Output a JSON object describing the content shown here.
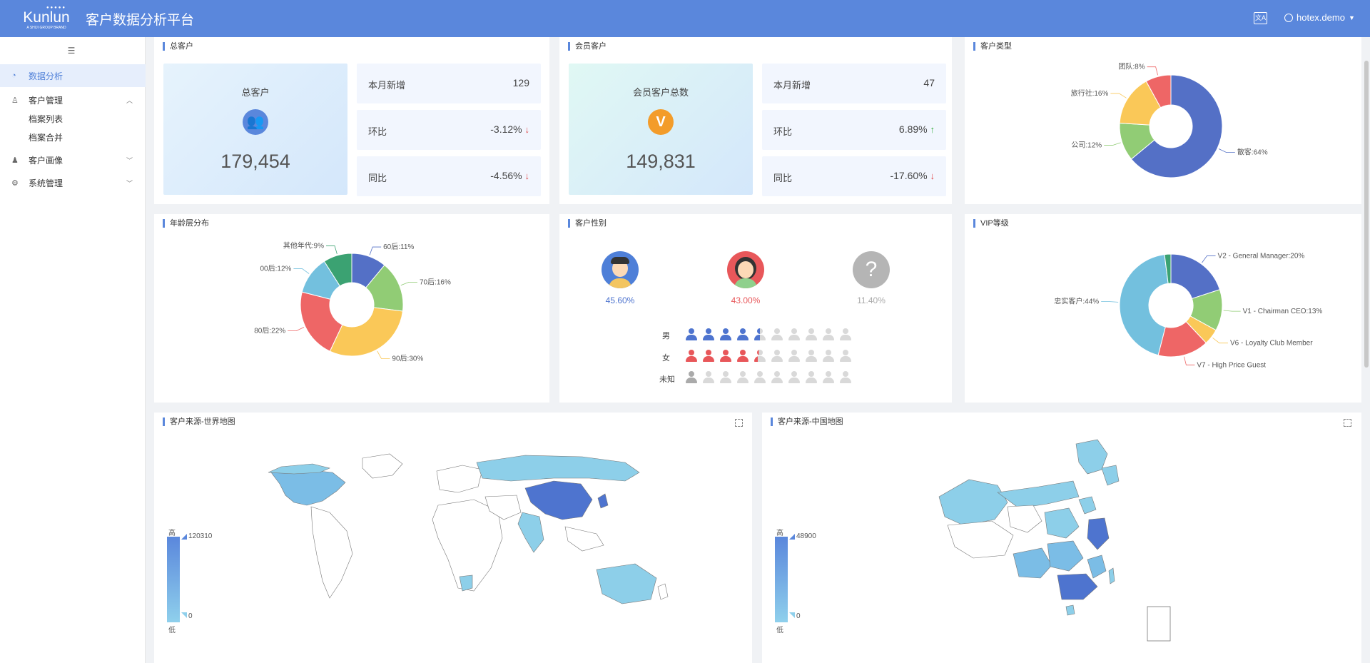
{
  "header": {
    "logo_name": "Kunlun",
    "logo_sub": "A SHIJI GROUP BRAND",
    "title": "客户数据分析平台",
    "lang_icon": "translate-icon",
    "user": "hotex.demo"
  },
  "sidebar": {
    "items": [
      {
        "label": "数据分析",
        "icon": "chart-icon"
      },
      {
        "label": "客户管理",
        "icon": "users-icon"
      },
      {
        "label": "档案列表"
      },
      {
        "label": "档案合并"
      },
      {
        "label": "客户画像",
        "icon": "person-icon"
      },
      {
        "label": "系统管理",
        "icon": "gear-icon"
      }
    ]
  },
  "total_customers": {
    "title": "总客户",
    "big_label": "总客户",
    "big_value": "179,454",
    "rows": [
      {
        "label": "本月新增",
        "value": "129",
        "trend": ""
      },
      {
        "label": "环比",
        "value": "-3.12%",
        "trend": "down"
      },
      {
        "label": "同比",
        "value": "-4.56%",
        "trend": "down"
      }
    ]
  },
  "member_customers": {
    "title": "会员客户",
    "big_label": "会员客户总数",
    "big_value": "149,831",
    "rows": [
      {
        "label": "本月新增",
        "value": "47",
        "trend": ""
      },
      {
        "label": "环比",
        "value": "6.89%",
        "trend": "up"
      },
      {
        "label": "同比",
        "value": "-17.60%",
        "trend": "down"
      }
    ]
  },
  "customer_type": {
    "title": "客户类型",
    "chart_data": {
      "type": "pie",
      "series": [
        {
          "name": "散客",
          "value": 64,
          "label": "散客:64%",
          "color": "#5470c6"
        },
        {
          "name": "公司",
          "value": 12,
          "label": "公司:12%",
          "color": "#91cc75"
        },
        {
          "name": "旅行社",
          "value": 16,
          "label": "旅行社:16%",
          "color": "#fac858"
        },
        {
          "name": "团队",
          "value": 8,
          "label": "团队:8%",
          "color": "#ee6666"
        }
      ]
    }
  },
  "age_distribution": {
    "title": "年龄层分布",
    "chart_data": {
      "type": "pie",
      "series": [
        {
          "name": "60后",
          "value": 11,
          "label": "60后:11%",
          "color": "#5470c6"
        },
        {
          "name": "70后",
          "value": 16,
          "label": "70后:16%",
          "color": "#91cc75"
        },
        {
          "name": "90后",
          "value": 30,
          "label": "90后:30%",
          "color": "#fac858"
        },
        {
          "name": "80后",
          "value": 22,
          "label": "80后:22%",
          "color": "#ee6666"
        },
        {
          "name": "00后",
          "value": 12,
          "label": "00后:12%",
          "color": "#73c0de"
        },
        {
          "name": "其他年代",
          "value": 9,
          "label": "其他年代:9%",
          "color": "#3ba272"
        }
      ]
    }
  },
  "gender": {
    "title": "客户性别",
    "male_pct": "45.60%",
    "female_pct": "43.00%",
    "unknown_pct": "11.40%",
    "male_label": "男",
    "female_label": "女",
    "unknown_label": "未知",
    "unknown_symbol": "?",
    "male_color": "#4e74cf",
    "female_color": "#e8575a",
    "unknown_color": "#aaaaaa",
    "male_fill": 4.5,
    "female_fill": 4.3,
    "unknown_fill": 1
  },
  "vip_level": {
    "title": "VIP等级",
    "chart_data": {
      "type": "pie",
      "series": [
        {
          "name": "V2 - General Manager",
          "value": 20,
          "label": "V2 - General Manager:20%",
          "color": "#5470c6"
        },
        {
          "name": "V1 - Chairman CEO",
          "value": 13,
          "label": "V1 - Chairman CEO:13%",
          "color": "#91cc75"
        },
        {
          "name": "V6 - Loyalty Club Member",
          "value": 5,
          "label": "V6 - Loyalty Club Member",
          "color": "#fac858"
        },
        {
          "name": "V7 - High Price Guest",
          "value": 16,
          "label": "V7 - High Price Guest",
          "color": "#ee6666"
        },
        {
          "name": "忠实客户",
          "value": 44,
          "label": "忠实客户:44%",
          "color": "#73c0de"
        },
        {
          "name": "other",
          "value": 2,
          "label": "",
          "color": "#3ba272"
        }
      ]
    }
  },
  "world_map": {
    "title": "客户来源-世界地图",
    "legend_high": "高",
    "legend_low": "低",
    "max": "120310",
    "min": "0"
  },
  "china_map": {
    "title": "客户来源-中国地图",
    "legend_high": "高",
    "legend_low": "低",
    "max": "48900",
    "min": "0"
  }
}
